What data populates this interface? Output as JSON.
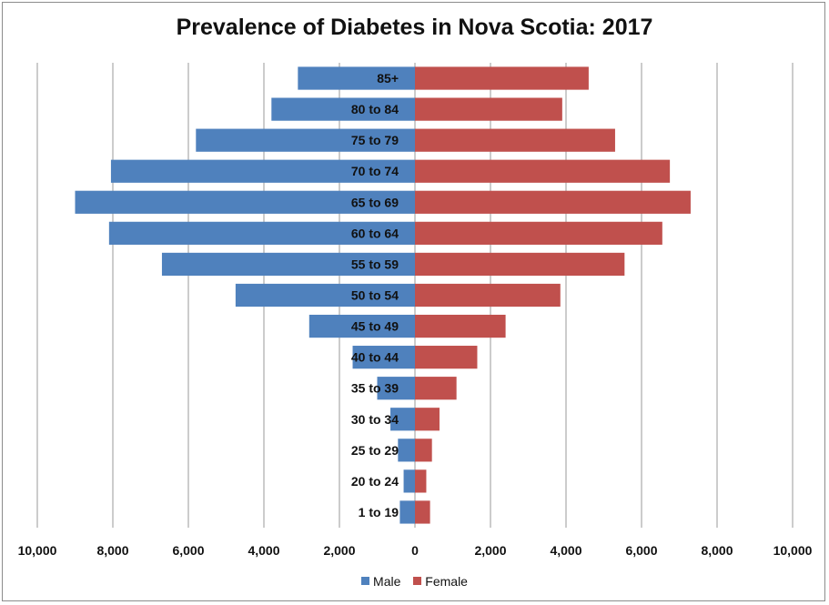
{
  "chart_data": {
    "type": "bar",
    "orientation": "horizontal",
    "layout": "population-pyramid",
    "title": "Prevalence of Diabetes in Nova Scotia: 2017",
    "categories": [
      "85+",
      "80 to 84",
      "75 to 79",
      "70 to 74",
      "65 to 69",
      "60 to 64",
      "55 to 59",
      "50 to 54",
      "45 to 49",
      "40 to 44",
      "35 to 39",
      "30 to 34",
      "25 to 29",
      "20 to 24",
      "1 to 19"
    ],
    "series": [
      {
        "name": "Male",
        "color": "#4f81bd",
        "values": [
          3100,
          3800,
          5800,
          8050,
          9000,
          8100,
          6700,
          4750,
          2800,
          1650,
          1000,
          650,
          450,
          300,
          400
        ]
      },
      {
        "name": "Female",
        "color": "#c0504d",
        "values": [
          4600,
          3900,
          5300,
          6750,
          7300,
          6550,
          5550,
          3850,
          2400,
          1650,
          1100,
          650,
          450,
          300,
          400
        ]
      }
    ],
    "xlim": [
      -10000,
      10000
    ],
    "xticks": [
      "10,000",
      "8,000",
      "6,000",
      "4,000",
      "2,000",
      "0",
      "2,000",
      "4,000",
      "6,000",
      "8,000",
      "10,000"
    ],
    "grid": "vertical",
    "legend_position": "bottom"
  }
}
